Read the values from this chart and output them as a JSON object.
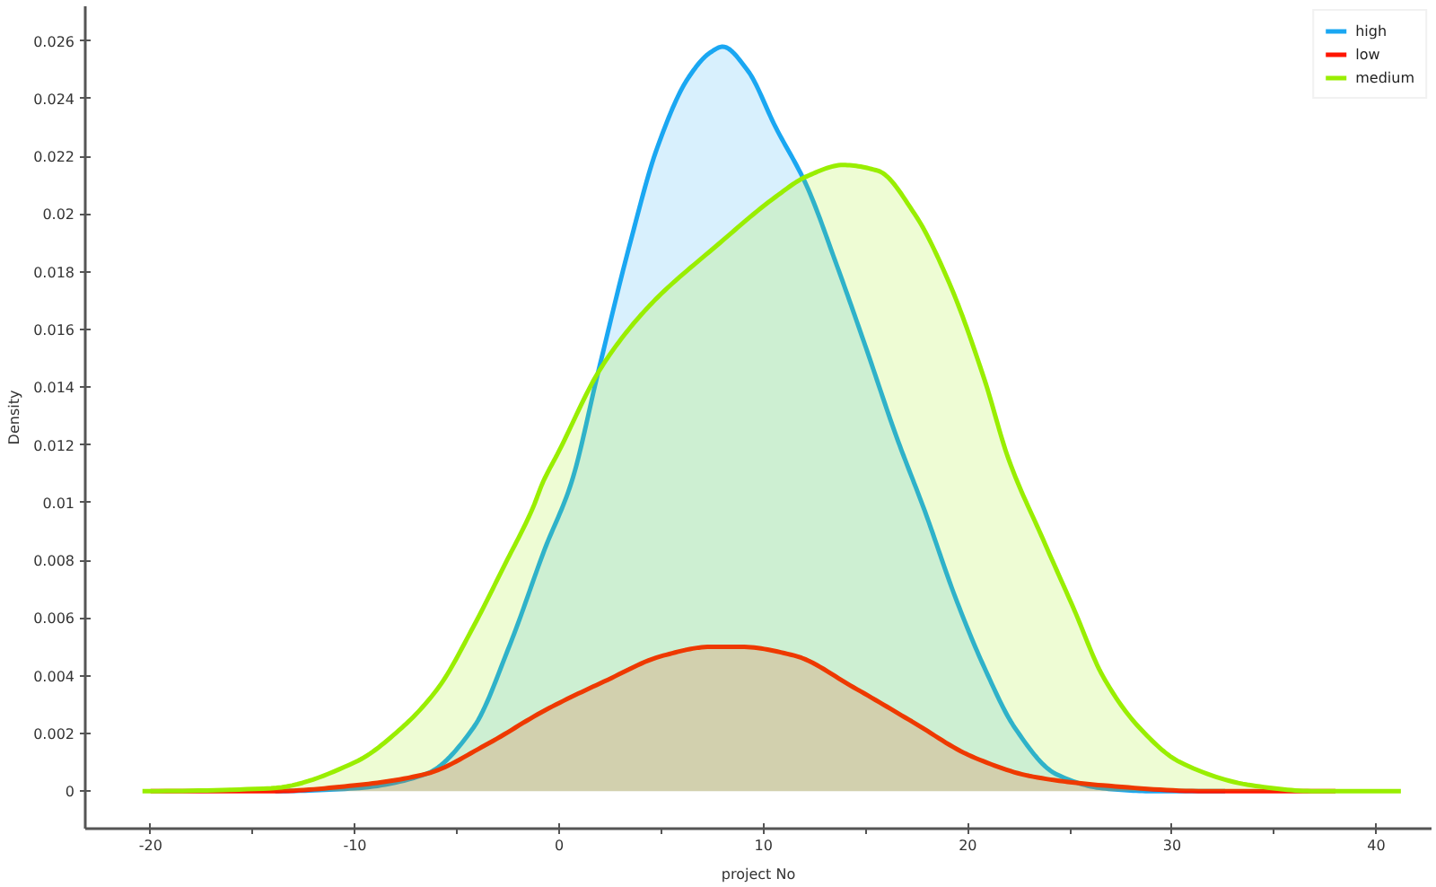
{
  "chart_data": {
    "type": "area",
    "xlabel": "project No",
    "ylabel": "Density",
    "xlim": [
      -23.2,
      42.7
    ],
    "ylim": [
      -0.0013,
      0.0272
    ],
    "xticks": [
      -20,
      {
        "value": -15,
        "label": null
      },
      -10,
      {
        "value": -5,
        "label": null
      },
      0,
      {
        "value": 5,
        "label": null
      },
      10,
      {
        "value": 15,
        "label": null
      },
      20,
      {
        "value": 25,
        "label": null
      },
      30,
      {
        "value": 35,
        "label": null
      },
      40
    ],
    "yticks": [
      0,
      0.002,
      0.004,
      0.006,
      0.008,
      0.01,
      0.012,
      0.014,
      0.016,
      0.018,
      0.02,
      0.022,
      0.024,
      0.026
    ],
    "legend": "top right",
    "series": [
      {
        "name": "high",
        "color": "#1aa7f2",
        "x": [
          -13.9,
          -10,
          -6.5,
          -4.2,
          -2.4,
          -0.7,
          0.6,
          1.9,
          3.4,
          4.8,
          6.3,
          7.4,
          8.0,
          9.2,
          10.6,
          12.1,
          13.6,
          15.0,
          16.5,
          17.9,
          19.4,
          20.8,
          22.3,
          24.3,
          26.6,
          29,
          32.6
        ],
        "values": [
          0,
          0.0001,
          0.0006,
          0.0022,
          0.0051,
          0.0084,
          0.0107,
          0.0145,
          0.0188,
          0.0223,
          0.0247,
          0.0256,
          0.0258,
          0.025,
          0.023,
          0.021,
          0.0182,
          0.0154,
          0.0123,
          0.0097,
          0.0067,
          0.0043,
          0.0022,
          0.0006,
          0.0001,
          0,
          0
        ]
      },
      {
        "name": "low",
        "color": "#ff1500",
        "x": [
          -20,
          -14,
          -10,
          -6.5,
          -3.6,
          -0.7,
          2.2,
          5.1,
          7.4,
          8.9,
          11.5,
          14.4,
          17.3,
          20.2,
          23.2,
          26.6,
          31.6,
          38
        ],
        "values": [
          0,
          0,
          0.0002,
          0.0006,
          0.0016,
          0.0028,
          0.0038,
          0.0047,
          0.005,
          0.005,
          0.0047,
          0.0036,
          0.0024,
          0.0012,
          0.0005,
          0.0002,
          0,
          0
        ]
      },
      {
        "name": "medium",
        "color": "#99ee00",
        "x": [
          -20.4,
          -14.1,
          -10,
          -7.7,
          -5.9,
          -4.2,
          -2.7,
          -1.3,
          -0.8,
          0,
          1.9,
          3.4,
          4.8,
          7.7,
          10.6,
          12.1,
          13.9,
          15.6,
          17.4,
          19.1,
          20.8,
          22.0,
          23.7,
          25.2,
          26.6,
          28.4,
          30.4,
          33.9,
          37,
          41.2
        ],
        "values": [
          0,
          0.0001,
          0.001,
          0.0022,
          0.0036,
          0.0057,
          0.0078,
          0.0098,
          0.0107,
          0.0118,
          0.0145,
          0.016,
          0.0171,
          0.0189,
          0.0206,
          0.0213,
          0.0217,
          0.0215,
          0.02,
          0.0176,
          0.0143,
          0.0115,
          0.0087,
          0.0063,
          0.004,
          0.0022,
          0.001,
          0.0002,
          0,
          0
        ]
      }
    ]
  }
}
